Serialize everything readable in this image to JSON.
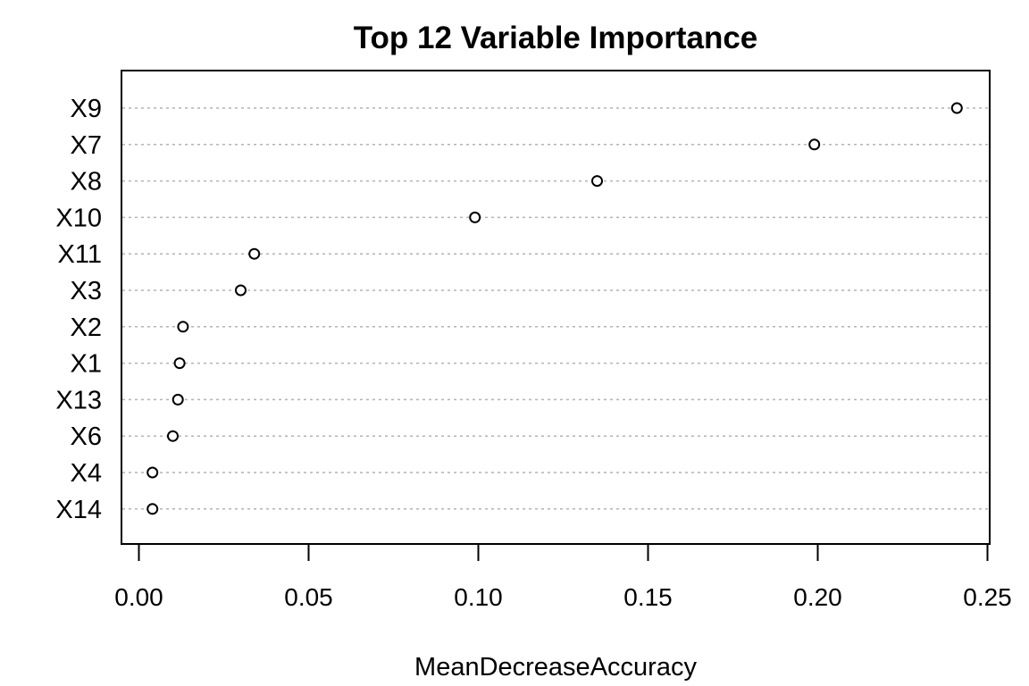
{
  "chart_data": {
    "type": "scatter",
    "title": "Top 12 Variable Importance",
    "xlabel": "MeanDecreaseAccuracy",
    "ylabel": "",
    "xlim": [
      -0.005,
      0.2505
    ],
    "xticks": [
      "0.00",
      "0.05",
      "0.10",
      "0.15",
      "0.20",
      "0.25"
    ],
    "xtick_values": [
      0.0,
      0.05,
      0.1,
      0.15,
      0.2,
      0.25
    ],
    "grid": "horizontal dotted",
    "categories": [
      "X9",
      "X7",
      "X8",
      "X10",
      "X11",
      "X3",
      "X2",
      "X1",
      "X13",
      "X6",
      "X4",
      "X14"
    ],
    "values": [
      0.241,
      0.199,
      0.135,
      0.099,
      0.034,
      0.03,
      0.013,
      0.012,
      0.0115,
      0.01,
      0.004,
      0.004
    ]
  }
}
